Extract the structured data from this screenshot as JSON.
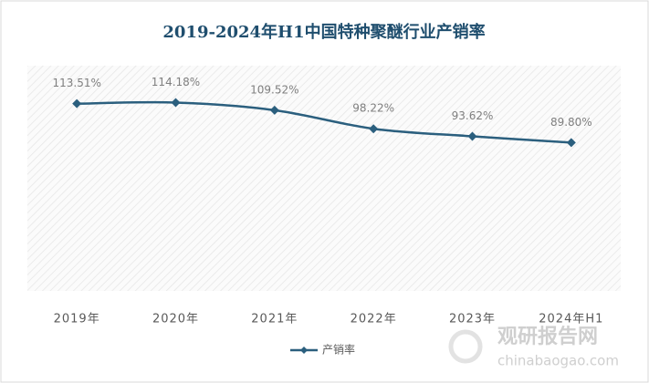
{
  "chart_data": {
    "type": "line",
    "title": "2019-2024年H1中国特种聚醚行业产销率",
    "categories": [
      "2019年",
      "2020年",
      "2021年",
      "2022年",
      "2023年",
      "2024年H1"
    ],
    "series": [
      {
        "name": "产销率",
        "color": "#2b5f7e",
        "values": [
          113.51,
          114.18,
          109.52,
          98.22,
          93.62,
          89.8
        ],
        "value_labels": [
          "113.51%",
          "114.18%",
          "109.52%",
          "98.22%",
          "93.62%",
          "89.80%"
        ]
      }
    ],
    "ylim": [
      0,
      135
    ],
    "legend": "bottom",
    "watermark": {
      "name": "观研报告网",
      "url": "chinabaogao.com"
    }
  }
}
